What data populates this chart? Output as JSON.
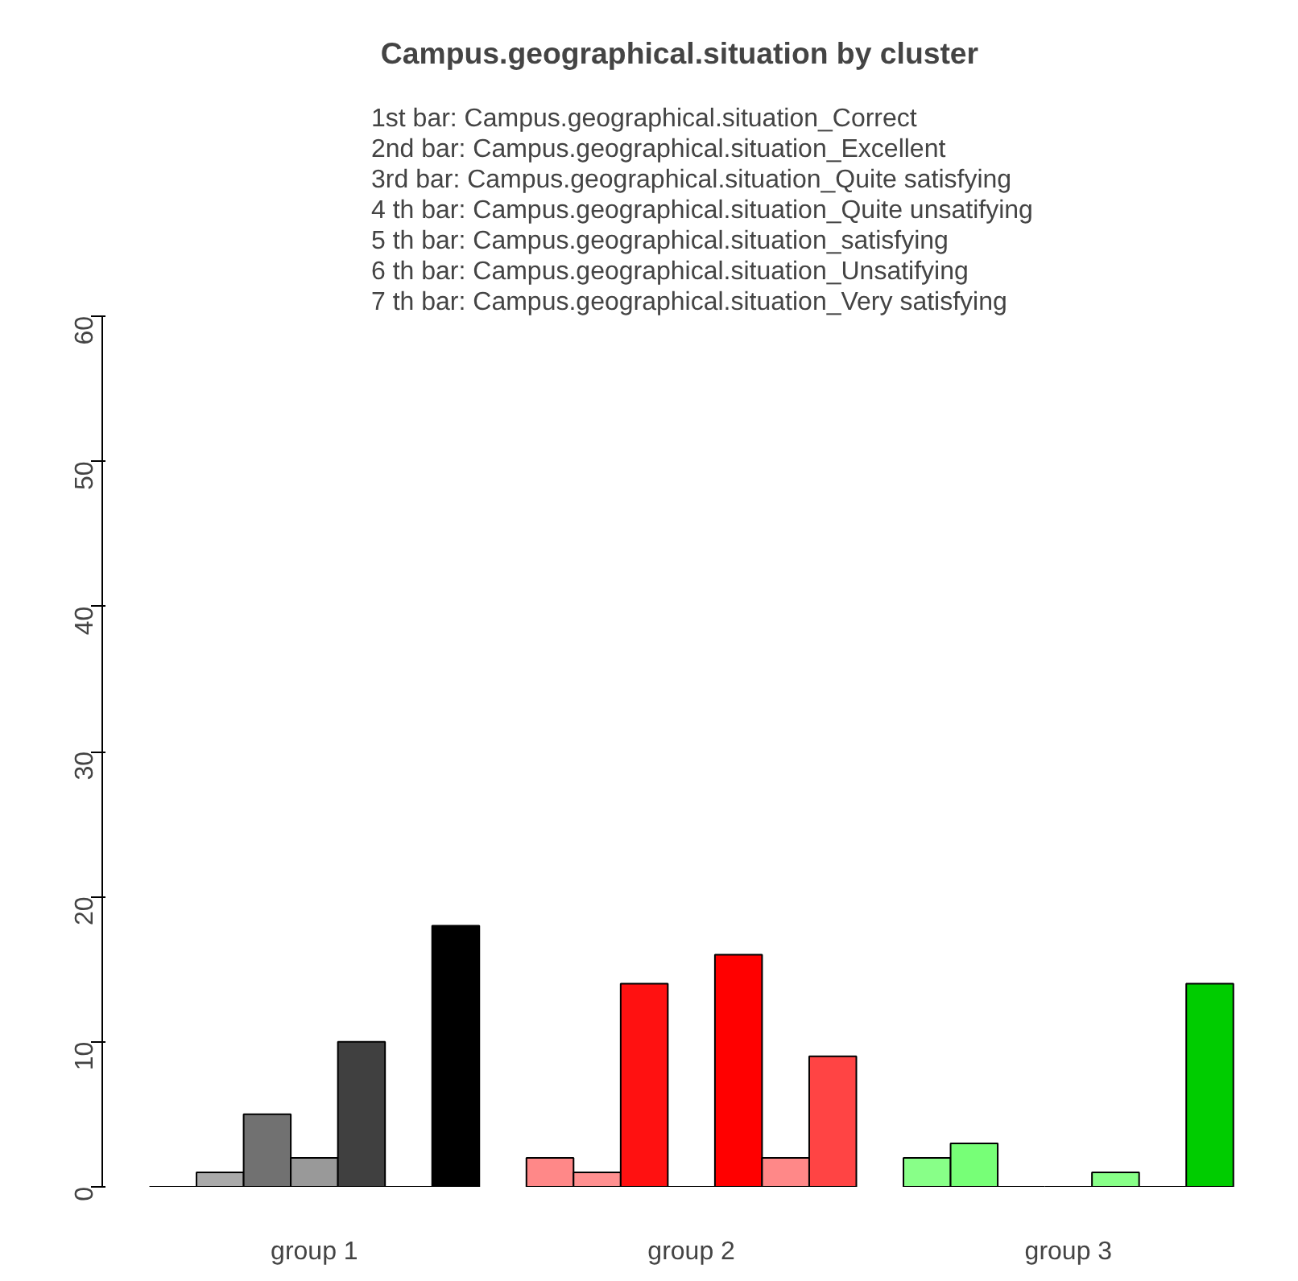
{
  "chart_data": {
    "type": "bar",
    "title": "Campus.geographical.situation by cluster",
    "categories": [
      "group 1",
      "group 2",
      "group 3"
    ],
    "series": [
      {
        "colors": [
          "#000000",
          "#ff8888",
          "#88ff88"
        ],
        "values": [
          0,
          2,
          2
        ]
      },
      {
        "colors": [
          "#aaaaaa",
          "#ff9090",
          "#77ff77"
        ],
        "values": [
          1,
          1,
          3
        ]
      },
      {
        "colors": [
          "#717171",
          "#ff1111",
          "#000000"
        ],
        "values": [
          5,
          14,
          0
        ]
      },
      {
        "colors": [
          "#999999",
          "#000000",
          "#000000"
        ],
        "values": [
          2,
          0,
          0
        ]
      },
      {
        "colors": [
          "#404040",
          "#ff0000",
          "#88ff88"
        ],
        "values": [
          10,
          16,
          1
        ]
      },
      {
        "colors": [
          "#000000",
          "#ff8888",
          "#000000"
        ],
        "values": [
          0,
          2,
          0
        ]
      },
      {
        "colors": [
          "#000000",
          "#ff4444",
          "#00cc00"
        ],
        "values": [
          18,
          9,
          14
        ]
      }
    ],
    "ylim": [
      0,
      60
    ],
    "yticks": [
      0,
      10,
      20,
      30,
      40,
      50,
      60
    ],
    "grid": false,
    "annotations": [
      "1st bar: Campus.geographical.situation_Correct",
      "2nd bar: Campus.geographical.situation_Excellent",
      "3rd bar: Campus.geographical.situation_Quite satisfying",
      "4 th bar: Campus.geographical.situation_Quite unsatifying",
      "5 th bar: Campus.geographical.situation_satisfying",
      "6 th bar: Campus.geographical.situation_Unsatifying",
      "7 th bar: Campus.geographical.situation_Very satisfying"
    ]
  }
}
